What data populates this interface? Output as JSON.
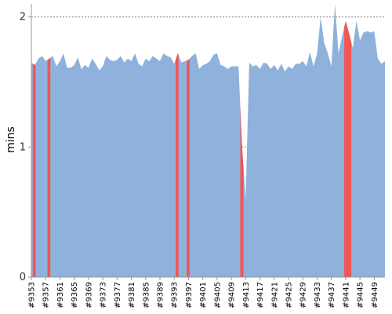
{
  "chart_data": {
    "type": "area",
    "title": "",
    "xlabel": "",
    "ylabel": "mins",
    "ylim": [
      0,
      2.1
    ],
    "y_ticks": [
      "0",
      "1",
      "2"
    ],
    "gridlines": [
      1,
      2
    ],
    "grid": "horizontal dotted",
    "x_tick_labels": [
      "#9353",
      "#9357",
      "#9361",
      "#9365",
      "#9369",
      "#9373",
      "#9377",
      "#9381",
      "#9385",
      "#9389",
      "#9393",
      "#9397",
      "#9401",
      "#9405",
      "#9409",
      "#9413",
      "#9417",
      "#9421",
      "#9425",
      "#9429",
      "#9433",
      "#9437",
      "#9441",
      "#9445",
      "#9449"
    ],
    "x_start": 9353,
    "x_end": 9452,
    "series": [
      {
        "color": "#8fb2dc",
        "values": [
          1.65,
          1.63,
          1.68,
          1.7,
          1.66,
          1.68,
          1.7,
          1.62,
          1.66,
          1.72,
          1.61,
          1.61,
          1.63,
          1.69,
          1.6,
          1.63,
          1.61,
          1.68,
          1.64,
          1.59,
          1.62,
          1.7,
          1.67,
          1.66,
          1.67,
          1.7,
          1.65,
          1.68,
          1.66,
          1.72,
          1.64,
          1.62,
          1.68,
          1.66,
          1.7,
          1.68,
          1.66,
          1.72,
          1.7,
          1.69,
          1.64,
          1.72,
          1.65,
          1.66,
          1.67,
          1.7,
          1.72,
          1.6,
          1.63,
          1.64,
          1.66,
          1.71,
          1.72,
          1.63,
          1.62,
          1.6,
          1.62,
          1.62,
          1.62,
          1.0,
          0.6,
          1.65,
          1.62,
          1.63,
          1.6,
          1.65,
          1.64,
          1.6,
          1.63,
          1.59,
          1.64,
          1.58,
          1.62,
          1.6,
          1.64,
          1.64,
          1.66,
          1.62,
          1.73,
          1.62,
          1.72,
          2.0,
          1.8,
          1.72,
          1.62,
          2.1,
          1.72,
          1.85,
          1.97,
          1.87,
          1.76,
          1.97,
          1.82,
          1.88,
          1.89,
          1.88,
          1.89,
          1.68,
          1.64,
          1.66
        ]
      }
    ],
    "highlight_color": "#f15555",
    "highlights": [
      {
        "from": 9353.4,
        "to": 9354.2
      },
      {
        "from": 9357.5,
        "to": 9358.3
      },
      {
        "from": 9393.4,
        "to": 9394.2
      },
      {
        "from": 9396.5,
        "to": 9397.3
      },
      {
        "from": 9411.5,
        "to": 9412.4
      },
      {
        "from": 9440.6,
        "to": 9442.6
      }
    ]
  }
}
